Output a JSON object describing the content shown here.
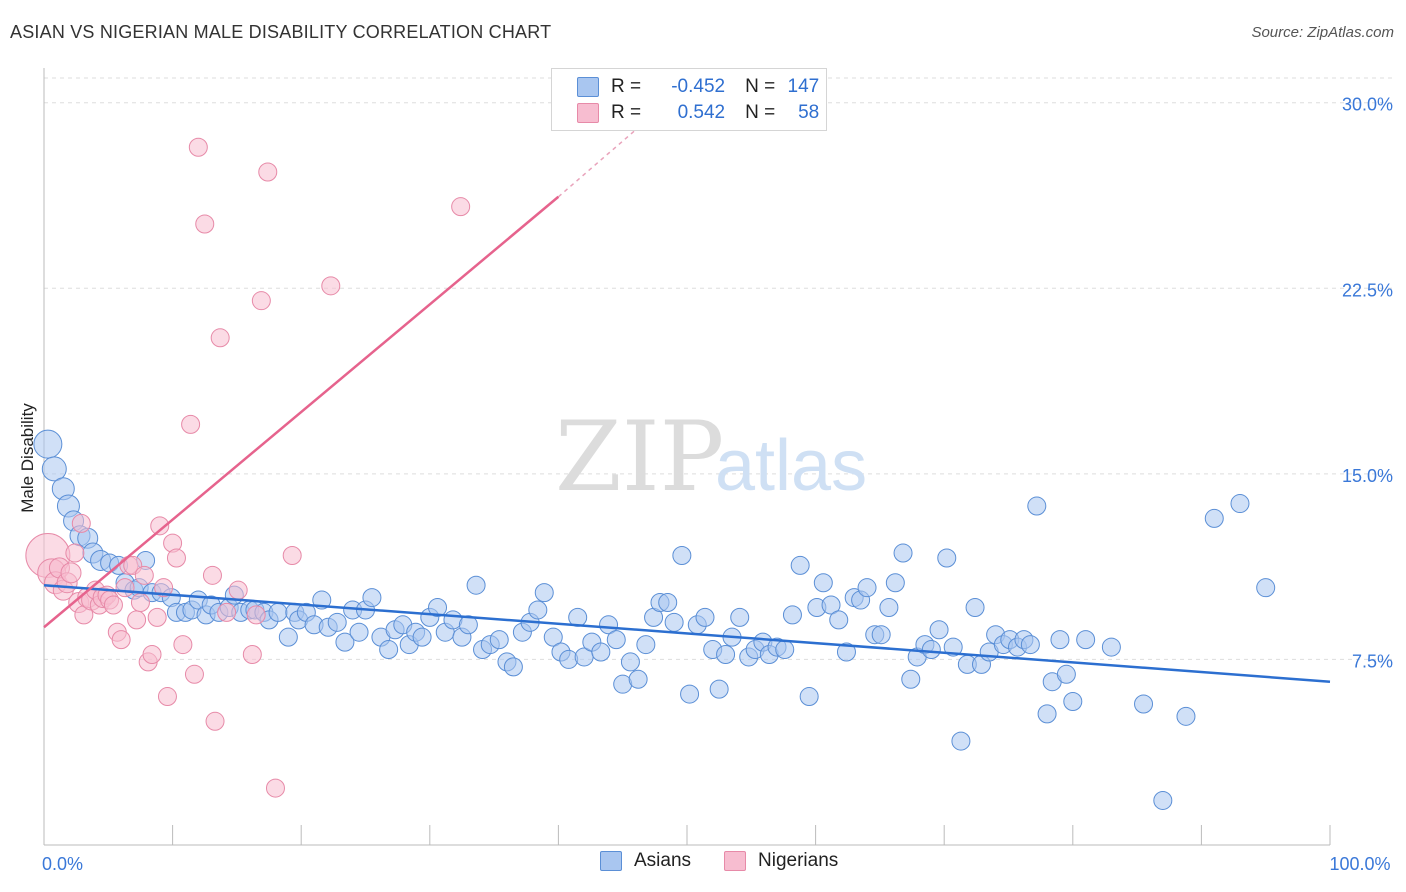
{
  "title": "ASIAN VS NIGERIAN MALE DISABILITY CORRELATION CHART",
  "source": "Source: ZipAtlas.com",
  "watermark": {
    "zip": "ZIP",
    "atlas": "atlas"
  },
  "legend": {
    "r_label": "R =",
    "n_label": "N =",
    "rows": [
      {
        "r": "-0.452",
        "n": "147",
        "fill": "#a9c6f0",
        "stroke": "#5b8fd6"
      },
      {
        "r": "0.542",
        "n": "58",
        "fill": "#f7bdd0",
        "stroke": "#e78aa8"
      }
    ]
  },
  "bottom_legend": [
    "Asians",
    "Nigerians"
  ],
  "colors": {
    "asian_fill": "#a9c6f0",
    "asian_stroke": "#5b8fd6",
    "asian_line": "#2c6fd0",
    "nigerian_fill": "#f7bdd0",
    "nigerian_stroke": "#e78aa8",
    "nigerian_line": "#e6638d",
    "tick_label": "#3a78d8",
    "grid": "#dddddd"
  },
  "chart_data": {
    "type": "scatter",
    "title": "ASIAN VS NIGERIAN MALE DISABILITY CORRELATION CHART",
    "xlabel": "",
    "ylabel": "Male Disability",
    "xlim": [
      0,
      100
    ],
    "ylim": [
      0,
      31
    ],
    "x_ticks": [
      0,
      100
    ],
    "x_tick_labels": [
      "0.0%",
      "100.0%"
    ],
    "y_ticks": [
      7.5,
      15.0,
      22.5,
      30.0
    ],
    "y_tick_labels": [
      "7.5%",
      "15.0%",
      "22.5%",
      "30.0%"
    ],
    "grid": true,
    "legend_position": "top-center",
    "series": [
      {
        "name": "Asians",
        "r": -0.452,
        "n": 147,
        "trend": {
          "x": [
            0,
            100
          ],
          "y": [
            10.5,
            6.6
          ]
        },
        "points": [
          [
            0.3,
            16.2,
            14
          ],
          [
            0.8,
            15.2,
            12
          ],
          [
            1.5,
            14.4,
            11
          ],
          [
            1.9,
            13.7,
            11
          ],
          [
            2.3,
            13.1,
            10
          ],
          [
            2.8,
            12.5,
            10
          ],
          [
            3.4,
            12.4,
            10
          ],
          [
            3.8,
            11.8,
            10
          ],
          [
            4.4,
            11.5,
            10
          ],
          [
            5.1,
            11.4,
            9
          ],
          [
            5.8,
            11.3,
            9
          ],
          [
            6.3,
            10.6,
            9
          ],
          [
            7.0,
            10.3,
            9
          ],
          [
            7.4,
            10.4,
            9
          ],
          [
            7.9,
            11.5,
            9
          ],
          [
            8.4,
            10.2,
            9
          ],
          [
            9.1,
            10.2,
            9
          ],
          [
            9.9,
            10.0,
            9
          ],
          [
            10.3,
            9.4,
            9
          ],
          [
            11.0,
            9.4,
            9
          ],
          [
            11.5,
            9.5,
            9
          ],
          [
            12.0,
            9.9,
            9
          ],
          [
            12.6,
            9.3,
            9
          ],
          [
            13.0,
            9.7,
            9
          ],
          [
            13.6,
            9.4,
            9
          ],
          [
            14.4,
            9.6,
            9
          ],
          [
            14.8,
            10.1,
            9
          ],
          [
            15.3,
            9.4,
            9
          ],
          [
            16.0,
            9.5,
            9
          ],
          [
            16.4,
            9.5,
            9
          ],
          [
            17.1,
            9.4,
            9
          ],
          [
            17.5,
            9.1,
            9
          ],
          [
            18.2,
            9.4,
            9
          ],
          [
            19.0,
            8.4,
            9
          ],
          [
            19.5,
            9.4,
            9
          ],
          [
            19.8,
            9.1,
            9
          ],
          [
            20.4,
            9.4,
            9
          ],
          [
            21.0,
            8.9,
            9
          ],
          [
            21.6,
            9.9,
            9
          ],
          [
            22.1,
            8.8,
            9
          ],
          [
            22.8,
            9.0,
            9
          ],
          [
            23.4,
            8.2,
            9
          ],
          [
            24.0,
            9.5,
            9
          ],
          [
            24.5,
            8.6,
            9
          ],
          [
            25.0,
            9.5,
            9
          ],
          [
            25.5,
            10.0,
            9
          ],
          [
            26.2,
            8.4,
            9
          ],
          [
            26.8,
            7.9,
            9
          ],
          [
            27.3,
            8.7,
            9
          ],
          [
            27.9,
            8.9,
            9
          ],
          [
            28.4,
            8.1,
            9
          ],
          [
            28.9,
            8.6,
            9
          ],
          [
            29.4,
            8.4,
            9
          ],
          [
            30.0,
            9.2,
            9
          ],
          [
            30.6,
            9.6,
            9
          ],
          [
            31.2,
            8.6,
            9
          ],
          [
            31.8,
            9.1,
            9
          ],
          [
            32.5,
            8.4,
            9
          ],
          [
            33.0,
            8.9,
            9
          ],
          [
            33.6,
            10.5,
            9
          ],
          [
            34.1,
            7.9,
            9
          ],
          [
            34.7,
            8.1,
            9
          ],
          [
            35.4,
            8.3,
            9
          ],
          [
            36.0,
            7.4,
            9
          ],
          [
            36.5,
            7.2,
            9
          ],
          [
            37.2,
            8.6,
            9
          ],
          [
            37.8,
            9.0,
            9
          ],
          [
            38.4,
            9.5,
            9
          ],
          [
            38.9,
            10.2,
            9
          ],
          [
            39.6,
            8.4,
            9
          ],
          [
            40.2,
            7.8,
            9
          ],
          [
            40.8,
            7.5,
            9
          ],
          [
            41.5,
            9.2,
            9
          ],
          [
            42.0,
            7.6,
            9
          ],
          [
            42.6,
            8.2,
            9
          ],
          [
            43.3,
            7.8,
            9
          ],
          [
            43.9,
            8.9,
            9
          ],
          [
            44.5,
            8.3,
            9
          ],
          [
            45.0,
            6.5,
            9
          ],
          [
            45.6,
            7.4,
            9
          ],
          [
            46.2,
            6.7,
            9
          ],
          [
            46.8,
            8.1,
            9
          ],
          [
            47.4,
            9.2,
            9
          ],
          [
            47.9,
            9.8,
            9
          ],
          [
            48.5,
            9.8,
            9
          ],
          [
            49.0,
            9.0,
            9
          ],
          [
            49.6,
            11.7,
            9
          ],
          [
            50.2,
            6.1,
            9
          ],
          [
            50.8,
            8.9,
            9
          ],
          [
            51.4,
            9.2,
            9
          ],
          [
            52.0,
            7.9,
            9
          ],
          [
            52.5,
            6.3,
            9
          ],
          [
            53.0,
            7.7,
            9
          ],
          [
            53.5,
            8.4,
            9
          ],
          [
            54.1,
            9.2,
            9
          ],
          [
            54.8,
            7.6,
            9
          ],
          [
            55.3,
            7.9,
            9
          ],
          [
            55.9,
            8.2,
            9
          ],
          [
            56.4,
            7.7,
            9
          ],
          [
            57.0,
            8.0,
            9
          ],
          [
            57.6,
            7.9,
            9
          ],
          [
            58.2,
            9.3,
            9
          ],
          [
            58.8,
            11.3,
            9
          ],
          [
            59.5,
            6.0,
            9
          ],
          [
            60.1,
            9.6,
            9
          ],
          [
            60.6,
            10.6,
            9
          ],
          [
            61.2,
            9.7,
            9
          ],
          [
            61.8,
            9.1,
            9
          ],
          [
            62.4,
            7.8,
            9
          ],
          [
            63.0,
            10.0,
            9
          ],
          [
            63.5,
            9.9,
            9
          ],
          [
            64.0,
            10.4,
            9
          ],
          [
            64.6,
            8.5,
            9
          ],
          [
            65.1,
            8.5,
            9
          ],
          [
            65.7,
            9.6,
            9
          ],
          [
            66.2,
            10.6,
            9
          ],
          [
            66.8,
            11.8,
            9
          ],
          [
            67.4,
            6.7,
            9
          ],
          [
            67.9,
            7.6,
            9
          ],
          [
            68.5,
            8.1,
            9
          ],
          [
            69.0,
            7.9,
            9
          ],
          [
            69.6,
            8.7,
            9
          ],
          [
            70.2,
            11.6,
            9
          ],
          [
            70.7,
            8.0,
            9
          ],
          [
            71.3,
            4.2,
            9
          ],
          [
            71.8,
            7.3,
            9
          ],
          [
            72.4,
            9.6,
            9
          ],
          [
            72.9,
            7.3,
            9
          ],
          [
            73.5,
            7.8,
            9
          ],
          [
            74.0,
            8.5,
            9
          ],
          [
            74.6,
            8.1,
            9
          ],
          [
            75.1,
            8.3,
            9
          ],
          [
            75.7,
            8.0,
            9
          ],
          [
            76.2,
            8.3,
            9
          ],
          [
            76.7,
            8.1,
            9
          ],
          [
            77.2,
            13.7,
            9
          ],
          [
            78.0,
            5.3,
            9
          ],
          [
            78.4,
            6.6,
            9
          ],
          [
            79.0,
            8.3,
            9
          ],
          [
            79.5,
            6.9,
            9
          ],
          [
            80.0,
            5.8,
            9
          ],
          [
            81.0,
            8.3,
            9
          ],
          [
            83.0,
            8.0,
            9
          ],
          [
            85.5,
            5.7,
            9
          ],
          [
            87.0,
            1.8,
            9
          ],
          [
            88.8,
            5.2,
            9
          ],
          [
            91.0,
            13.2,
            9
          ],
          [
            93.0,
            13.8,
            9
          ],
          [
            95.0,
            10.4,
            9
          ]
        ]
      },
      {
        "name": "Nigerians",
        "r": 0.542,
        "n": 58,
        "trend": {
          "x": [
            0,
            40
          ],
          "y": [
            8.8,
            26.2
          ]
        },
        "trend_dashed": {
          "x": [
            40,
            46
          ],
          "y": [
            26.2,
            28.9
          ]
        },
        "points": [
          [
            0.3,
            11.7,
            22
          ],
          [
            0.6,
            11.0,
            14
          ],
          [
            0.9,
            10.6,
            11
          ],
          [
            1.2,
            11.2,
            10
          ],
          [
            1.5,
            10.3,
            10
          ],
          [
            1.8,
            10.6,
            10
          ],
          [
            2.1,
            11.0,
            10
          ],
          [
            2.4,
            11.8,
            9
          ],
          [
            2.7,
            9.8,
            10
          ],
          [
            2.9,
            13.0,
            9
          ],
          [
            3.1,
            9.3,
            9
          ],
          [
            3.4,
            10.0,
            10
          ],
          [
            3.7,
            9.9,
            10
          ],
          [
            4.0,
            10.3,
            9
          ],
          [
            4.3,
            9.7,
            9
          ],
          [
            4.6,
            10.0,
            10
          ],
          [
            4.9,
            10.1,
            9
          ],
          [
            5.1,
            9.9,
            9
          ],
          [
            5.4,
            9.7,
            9
          ],
          [
            5.7,
            8.6,
            9
          ],
          [
            6.0,
            8.3,
            9
          ],
          [
            6.3,
            10.4,
            9
          ],
          [
            6.6,
            11.3,
            9
          ],
          [
            6.9,
            11.3,
            9
          ],
          [
            7.2,
            9.1,
            9
          ],
          [
            7.5,
            9.8,
            9
          ],
          [
            7.8,
            10.9,
            9
          ],
          [
            8.1,
            7.4,
            9
          ],
          [
            8.4,
            7.7,
            9
          ],
          [
            8.8,
            9.2,
            9
          ],
          [
            9.0,
            12.9,
            9
          ],
          [
            9.3,
            10.4,
            9
          ],
          [
            9.6,
            6.0,
            9
          ],
          [
            10.0,
            12.2,
            9
          ],
          [
            10.3,
            11.6,
            9
          ],
          [
            10.8,
            8.1,
            9
          ],
          [
            11.4,
            17.0,
            9
          ],
          [
            11.7,
            6.9,
            9
          ],
          [
            12.0,
            28.2,
            9
          ],
          [
            12.5,
            25.1,
            9
          ],
          [
            13.1,
            10.9,
            9
          ],
          [
            13.3,
            5.0,
            9
          ],
          [
            13.7,
            20.5,
            9
          ],
          [
            14.2,
            9.4,
            9
          ],
          [
            15.1,
            10.3,
            9
          ],
          [
            16.2,
            7.7,
            9
          ],
          [
            16.5,
            9.3,
            9
          ],
          [
            16.9,
            22.0,
            9
          ],
          [
            17.4,
            27.2,
            9
          ],
          [
            18.0,
            2.3,
            9
          ],
          [
            19.3,
            11.7,
            9
          ],
          [
            22.3,
            22.6,
            9
          ],
          [
            32.4,
            25.8,
            9
          ]
        ]
      }
    ]
  }
}
